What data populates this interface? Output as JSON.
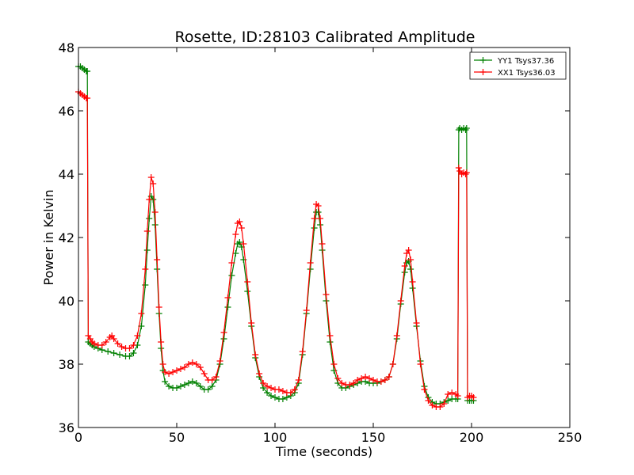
{
  "chart_data": {
    "type": "line",
    "title": "Rosette, ID:28103 Calibrated Amplitude",
    "xlabel": "Time (seconds)",
    "ylabel": "Power in Kelvin",
    "xlim": [
      0,
      250
    ],
    "ylim": [
      36,
      48
    ],
    "xticks": [
      "0",
      "50",
      "100",
      "150",
      "200",
      "250"
    ],
    "yticks": [
      "36",
      "38",
      "40",
      "42",
      "44",
      "46",
      "48"
    ],
    "grid": false,
    "legend_placement": "top-right",
    "marker": "+",
    "series": [
      {
        "name": "YY1 Tsys37.36",
        "color": "#008000",
        "points": [
          [
            0,
            47.4
          ],
          [
            1,
            47.4
          ],
          [
            2,
            47.35
          ],
          [
            3,
            47.3
          ],
          [
            4,
            47.25
          ],
          [
            4.5,
            47.25
          ],
          [
            5,
            38.7
          ],
          [
            6,
            38.65
          ],
          [
            7,
            38.6
          ],
          [
            8,
            38.55
          ],
          [
            10,
            38.5
          ],
          [
            12,
            38.45
          ],
          [
            15,
            38.4
          ],
          [
            18,
            38.35
          ],
          [
            21,
            38.3
          ],
          [
            24,
            38.25
          ],
          [
            26,
            38.25
          ],
          [
            28,
            38.35
          ],
          [
            30,
            38.6
          ],
          [
            32,
            39.2
          ],
          [
            34,
            40.5
          ],
          [
            35,
            41.6
          ],
          [
            36,
            42.6
          ],
          [
            37,
            43.3
          ],
          [
            38,
            43.2
          ],
          [
            39,
            42.4
          ],
          [
            40,
            41.0
          ],
          [
            41,
            39.6
          ],
          [
            42,
            38.5
          ],
          [
            43,
            37.8
          ],
          [
            44,
            37.45
          ],
          [
            46,
            37.3
          ],
          [
            48,
            37.25
          ],
          [
            50,
            37.25
          ],
          [
            52,
            37.3
          ],
          [
            54,
            37.35
          ],
          [
            56,
            37.4
          ],
          [
            58,
            37.45
          ],
          [
            60,
            37.4
          ],
          [
            62,
            37.3
          ],
          [
            64,
            37.2
          ],
          [
            66,
            37.2
          ],
          [
            68,
            37.3
          ],
          [
            70,
            37.5
          ],
          [
            72,
            38.0
          ],
          [
            74,
            38.8
          ],
          [
            76,
            39.8
          ],
          [
            78,
            40.8
          ],
          [
            80,
            41.5
          ],
          [
            81,
            41.8
          ],
          [
            82,
            41.85
          ],
          [
            83,
            41.7
          ],
          [
            84,
            41.3
          ],
          [
            86,
            40.3
          ],
          [
            88,
            39.2
          ],
          [
            90,
            38.2
          ],
          [
            92,
            37.6
          ],
          [
            94,
            37.25
          ],
          [
            96,
            37.1
          ],
          [
            98,
            37.0
          ],
          [
            100,
            36.95
          ],
          [
            102,
            36.9
          ],
          [
            104,
            36.9
          ],
          [
            106,
            36.95
          ],
          [
            108,
            37.0
          ],
          [
            110,
            37.1
          ],
          [
            112,
            37.4
          ],
          [
            114,
            38.3
          ],
          [
            116,
            39.6
          ],
          [
            118,
            41.0
          ],
          [
            120,
            42.3
          ],
          [
            121,
            42.8
          ],
          [
            122,
            42.8
          ],
          [
            123,
            42.4
          ],
          [
            124,
            41.6
          ],
          [
            126,
            40.0
          ],
          [
            128,
            38.7
          ],
          [
            130,
            37.8
          ],
          [
            132,
            37.4
          ],
          [
            134,
            37.25
          ],
          [
            136,
            37.25
          ],
          [
            138,
            37.3
          ],
          [
            140,
            37.35
          ],
          [
            142,
            37.4
          ],
          [
            144,
            37.45
          ],
          [
            146,
            37.45
          ],
          [
            148,
            37.4
          ],
          [
            150,
            37.4
          ],
          [
            152,
            37.4
          ],
          [
            154,
            37.45
          ],
          [
            156,
            37.5
          ],
          [
            158,
            37.6
          ],
          [
            160,
            38.0
          ],
          [
            162,
            38.8
          ],
          [
            164,
            39.9
          ],
          [
            166,
            40.9
          ],
          [
            167,
            41.2
          ],
          [
            168,
            41.25
          ],
          [
            169,
            41.0
          ],
          [
            170,
            40.4
          ],
          [
            172,
            39.2
          ],
          [
            174,
            38.1
          ],
          [
            176,
            37.3
          ],
          [
            178,
            36.95
          ],
          [
            180,
            36.8
          ],
          [
            182,
            36.75
          ],
          [
            184,
            36.75
          ],
          [
            186,
            36.8
          ],
          [
            188,
            36.85
          ],
          [
            190,
            36.9
          ],
          [
            192,
            36.9
          ],
          [
            193,
            36.9
          ],
          [
            193.5,
            45.4
          ],
          [
            194,
            45.45
          ],
          [
            195,
            45.4
          ],
          [
            196,
            45.45
          ],
          [
            197,
            45.4
          ],
          [
            197.5,
            45.45
          ],
          [
            198,
            36.85
          ],
          [
            199,
            36.85
          ],
          [
            200,
            36.85
          ],
          [
            201,
            36.85
          ]
        ]
      },
      {
        "name": "XX1 Tsys36.03",
        "color": "#ff0000",
        "points": [
          [
            0,
            46.6
          ],
          [
            1,
            46.55
          ],
          [
            2,
            46.5
          ],
          [
            3,
            46.45
          ],
          [
            4,
            46.4
          ],
          [
            4.5,
            46.4
          ],
          [
            5,
            38.9
          ],
          [
            6,
            38.8
          ],
          [
            7,
            38.7
          ],
          [
            8,
            38.65
          ],
          [
            10,
            38.6
          ],
          [
            12,
            38.6
          ],
          [
            14,
            38.7
          ],
          [
            16,
            38.85
          ],
          [
            17,
            38.9
          ],
          [
            18,
            38.8
          ],
          [
            20,
            38.65
          ],
          [
            22,
            38.55
          ],
          [
            24,
            38.5
          ],
          [
            26,
            38.5
          ],
          [
            28,
            38.6
          ],
          [
            30,
            38.9
          ],
          [
            32,
            39.6
          ],
          [
            34,
            41.0
          ],
          [
            35,
            42.2
          ],
          [
            36,
            43.2
          ],
          [
            37,
            43.9
          ],
          [
            38,
            43.7
          ],
          [
            39,
            42.8
          ],
          [
            40,
            41.3
          ],
          [
            41,
            39.8
          ],
          [
            42,
            38.7
          ],
          [
            43,
            38.0
          ],
          [
            44,
            37.75
          ],
          [
            46,
            37.7
          ],
          [
            48,
            37.75
          ],
          [
            50,
            37.8
          ],
          [
            52,
            37.85
          ],
          [
            54,
            37.9
          ],
          [
            56,
            38.0
          ],
          [
            58,
            38.05
          ],
          [
            60,
            38.0
          ],
          [
            62,
            37.9
          ],
          [
            64,
            37.7
          ],
          [
            66,
            37.5
          ],
          [
            68,
            37.5
          ],
          [
            70,
            37.6
          ],
          [
            72,
            38.1
          ],
          [
            74,
            39.0
          ],
          [
            76,
            40.1
          ],
          [
            78,
            41.2
          ],
          [
            80,
            42.1
          ],
          [
            81,
            42.45
          ],
          [
            82,
            42.5
          ],
          [
            83,
            42.3
          ],
          [
            84,
            41.8
          ],
          [
            86,
            40.6
          ],
          [
            88,
            39.3
          ],
          [
            90,
            38.3
          ],
          [
            92,
            37.7
          ],
          [
            94,
            37.4
          ],
          [
            96,
            37.3
          ],
          [
            98,
            37.25
          ],
          [
            100,
            37.2
          ],
          [
            102,
            37.2
          ],
          [
            104,
            37.15
          ],
          [
            106,
            37.1
          ],
          [
            108,
            37.1
          ],
          [
            110,
            37.2
          ],
          [
            112,
            37.5
          ],
          [
            114,
            38.4
          ],
          [
            116,
            39.7
          ],
          [
            118,
            41.2
          ],
          [
            120,
            42.6
          ],
          [
            121,
            43.05
          ],
          [
            122,
            43.0
          ],
          [
            123,
            42.6
          ],
          [
            124,
            41.8
          ],
          [
            126,
            40.2
          ],
          [
            128,
            38.9
          ],
          [
            130,
            38.0
          ],
          [
            132,
            37.55
          ],
          [
            134,
            37.4
          ],
          [
            136,
            37.35
          ],
          [
            138,
            37.35
          ],
          [
            140,
            37.4
          ],
          [
            142,
            37.5
          ],
          [
            144,
            37.55
          ],
          [
            146,
            37.6
          ],
          [
            148,
            37.55
          ],
          [
            150,
            37.5
          ],
          [
            152,
            37.45
          ],
          [
            154,
            37.45
          ],
          [
            156,
            37.5
          ],
          [
            158,
            37.6
          ],
          [
            160,
            38.0
          ],
          [
            162,
            38.9
          ],
          [
            164,
            40.0
          ],
          [
            166,
            41.1
          ],
          [
            167,
            41.5
          ],
          [
            168,
            41.6
          ],
          [
            169,
            41.3
          ],
          [
            170,
            40.6
          ],
          [
            172,
            39.3
          ],
          [
            174,
            38.0
          ],
          [
            176,
            37.2
          ],
          [
            178,
            36.85
          ],
          [
            180,
            36.7
          ],
          [
            182,
            36.65
          ],
          [
            184,
            36.65
          ],
          [
            186,
            36.75
          ],
          [
            188,
            37.05
          ],
          [
            190,
            37.1
          ],
          [
            192,
            37.05
          ],
          [
            193,
            37.0
          ],
          [
            193.5,
            44.2
          ],
          [
            194,
            44.1
          ],
          [
            195,
            44.0
          ],
          [
            196,
            44.05
          ],
          [
            197,
            44.0
          ],
          [
            197.5,
            44.05
          ],
          [
            198,
            36.95
          ],
          [
            199,
            37.0
          ],
          [
            200,
            37.0
          ],
          [
            201,
            36.95
          ]
        ]
      }
    ]
  }
}
